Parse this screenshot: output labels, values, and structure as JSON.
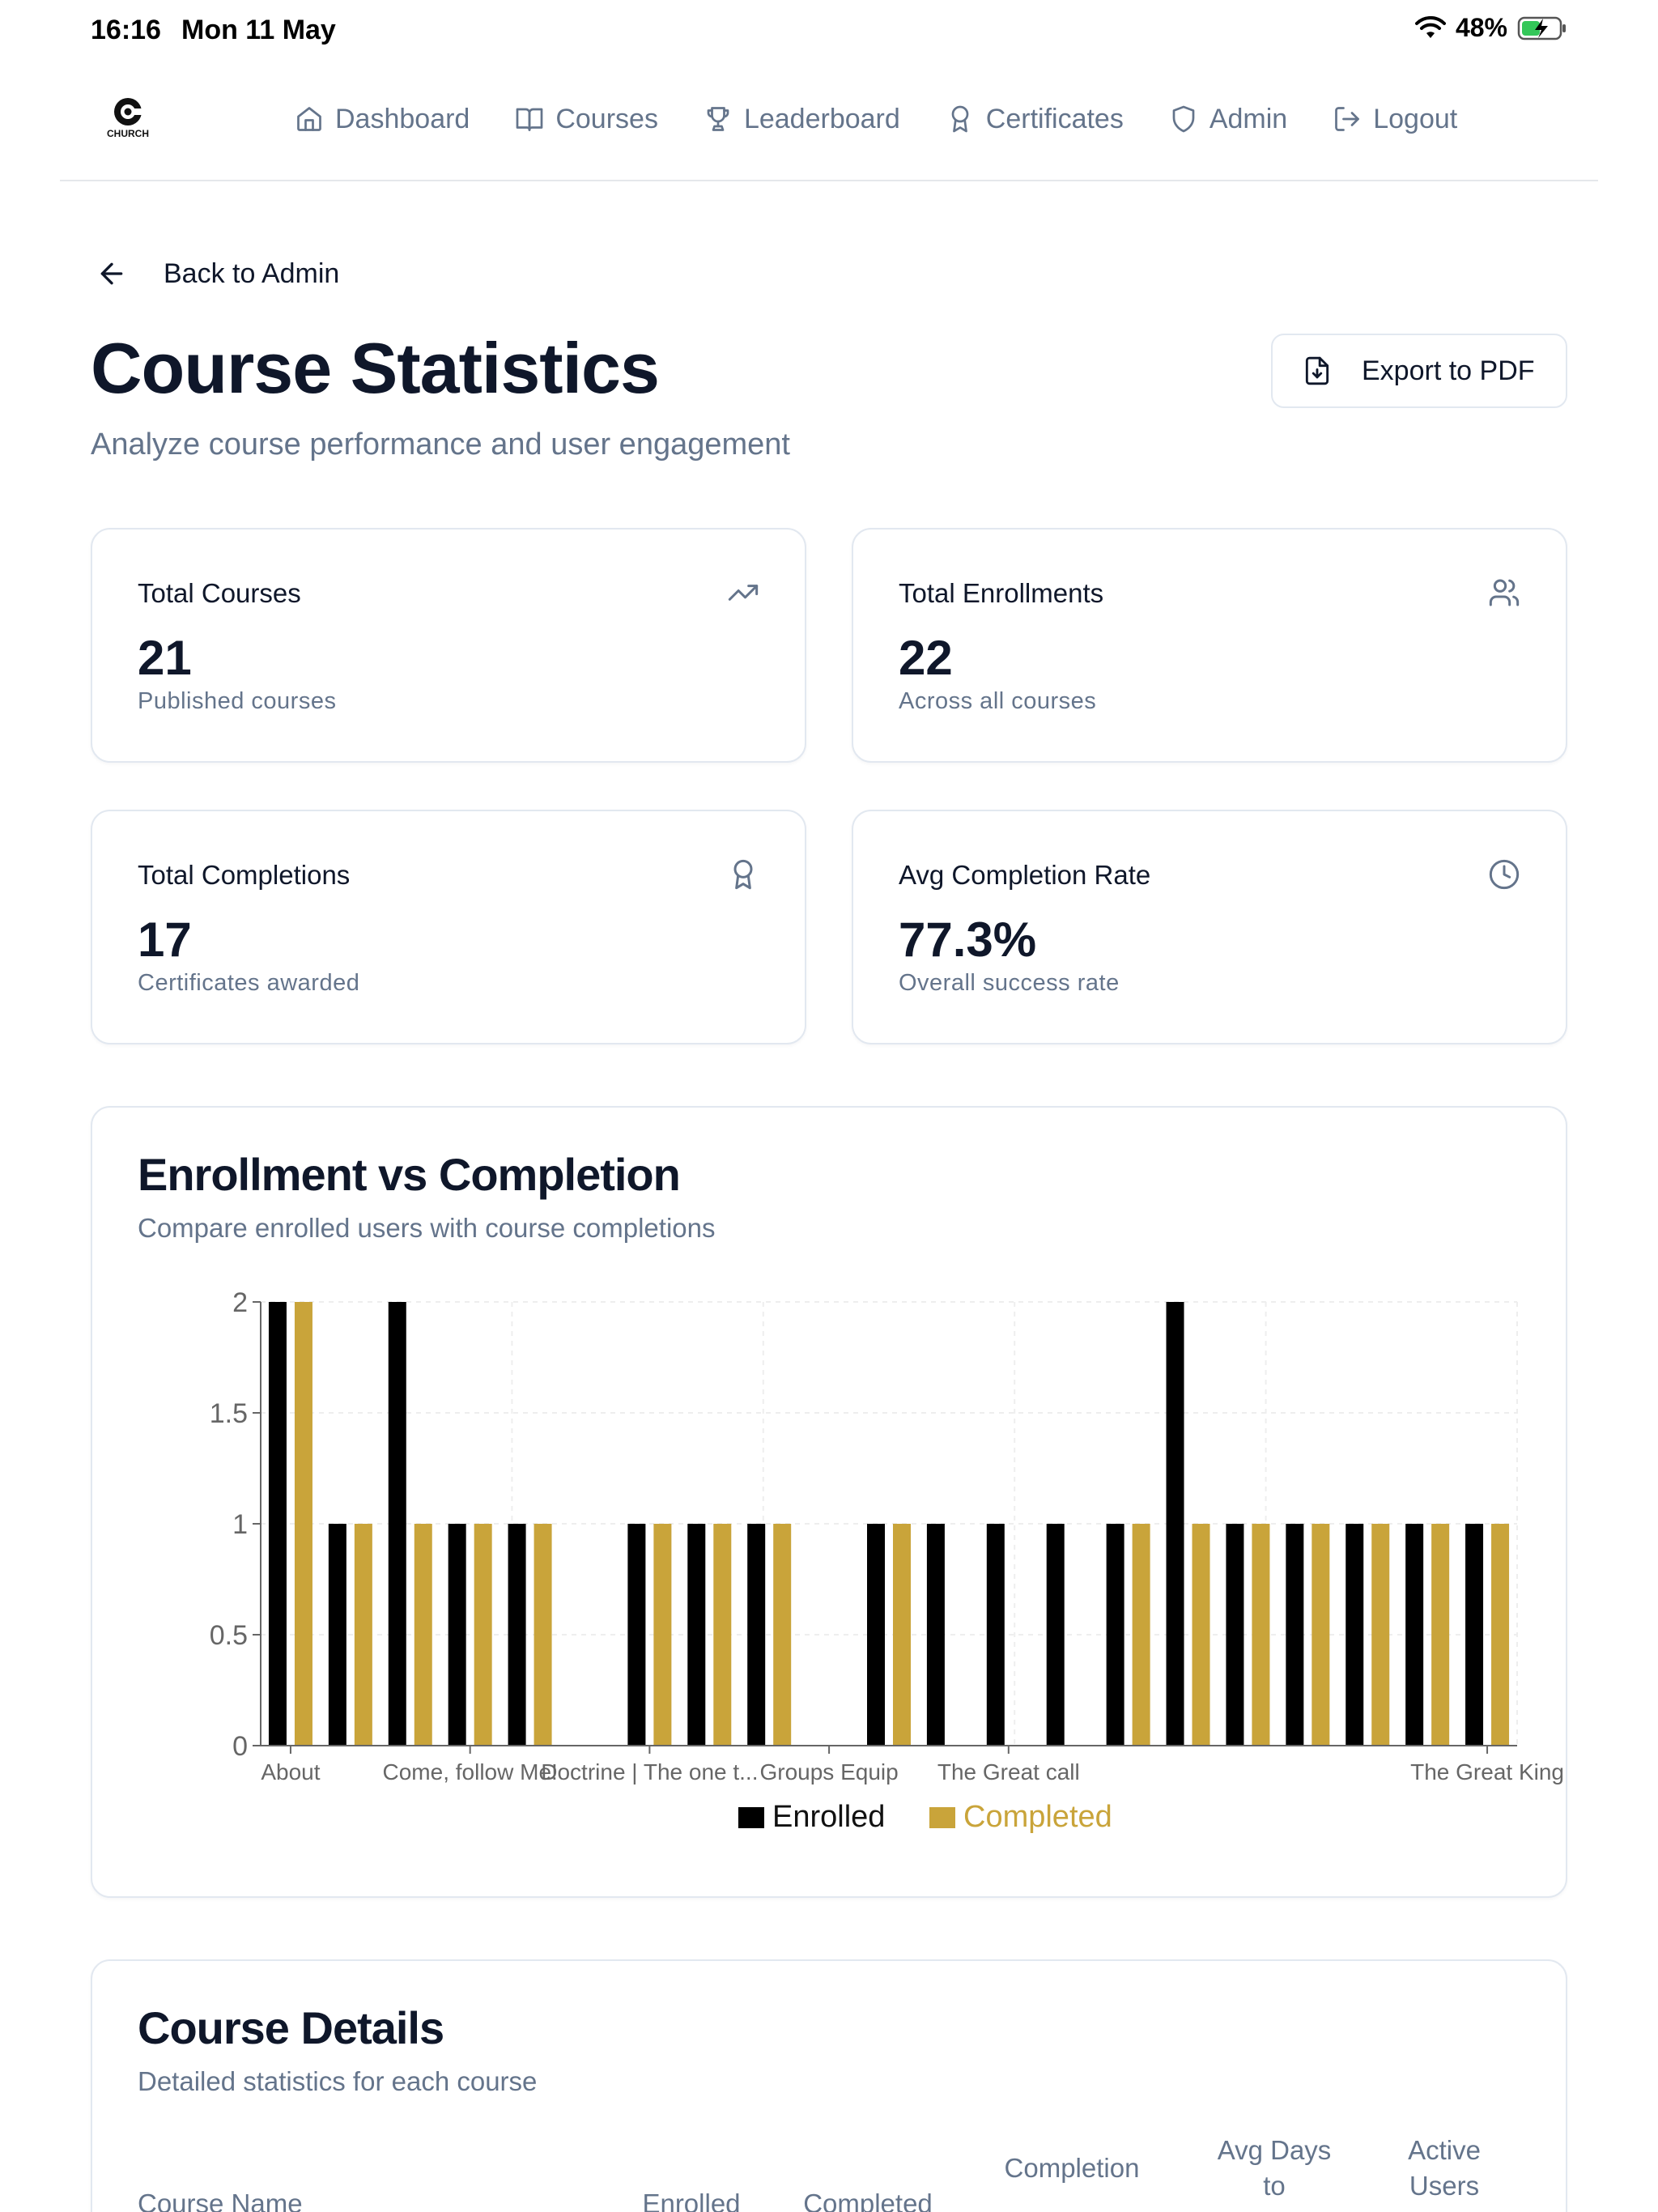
{
  "status": {
    "time": "16:16",
    "date": "Mon 11 May",
    "battery": "48%"
  },
  "brand": {
    "logo_text": "CHURCH"
  },
  "nav": [
    {
      "label": "Dashboard",
      "icon": "home-icon"
    },
    {
      "label": "Courses",
      "icon": "book-open-icon"
    },
    {
      "label": "Leaderboard",
      "icon": "trophy-icon"
    },
    {
      "label": "Certificates",
      "icon": "award-icon"
    },
    {
      "label": "Admin",
      "icon": "shield-icon"
    },
    {
      "label": "Logout",
      "icon": "logout-icon"
    }
  ],
  "back_label": "Back to Admin",
  "page": {
    "title": "Course Statistics",
    "subtitle": "Analyze course performance and user engagement",
    "export_label": "Export to PDF"
  },
  "stats": [
    {
      "label": "Total Courses",
      "value": "21",
      "note": "Published courses",
      "icon": "trending-up-icon"
    },
    {
      "label": "Total Enrollments",
      "value": "22",
      "note": "Across all courses",
      "icon": "users-icon"
    },
    {
      "label": "Total Completions",
      "value": "17",
      "note": "Certificates awarded",
      "icon": "award-icon"
    },
    {
      "label": "Avg Completion Rate",
      "value": "77.3%",
      "note": "Overall success rate",
      "icon": "clock-icon"
    }
  ],
  "chart": {
    "title": "Enrollment vs Completion",
    "subtitle": "Compare enrolled users with course completions"
  },
  "chart_data": {
    "type": "bar",
    "categories": [
      "About",
      "",
      "",
      "Come, follow Me!",
      "",
      "",
      "Doctrine | The one t...",
      "",
      "",
      "Groups Equip",
      "",
      "",
      "The Great call",
      "",
      "",
      "",
      "",
      "",
      "",
      "",
      "The Great King"
    ],
    "series": [
      {
        "name": "Enrolled",
        "color": "#000000",
        "values": [
          2,
          1,
          2,
          1,
          1,
          0,
          1,
          1,
          1,
          0,
          1,
          1,
          1,
          1,
          1,
          2,
          1,
          1,
          1,
          1,
          1
        ]
      },
      {
        "name": "Completed",
        "color": "#c9a43a",
        "values": [
          2,
          1,
          1,
          1,
          1,
          0,
          1,
          1,
          1,
          0,
          1,
          0,
          0,
          0,
          1,
          1,
          1,
          1,
          1,
          1,
          1
        ]
      }
    ],
    "yticks": [
      "0",
      "0.5",
      "1",
      "1.5",
      "2"
    ],
    "ylim": [
      0,
      2
    ],
    "legend_position": "bottom",
    "grid": true
  },
  "details": {
    "title": "Course Details",
    "subtitle": "Detailed statistics for each course",
    "columns": [
      {
        "line1": "Course Name",
        "line2": ""
      },
      {
        "line1": "Enrolled",
        "line2": ""
      },
      {
        "line1": "Completed",
        "line2": ""
      },
      {
        "line1": "Completion",
        "line2": ""
      },
      {
        "line1": "Avg Days",
        "line2": "to"
      },
      {
        "line1": "Active",
        "line2": "Users"
      }
    ]
  }
}
